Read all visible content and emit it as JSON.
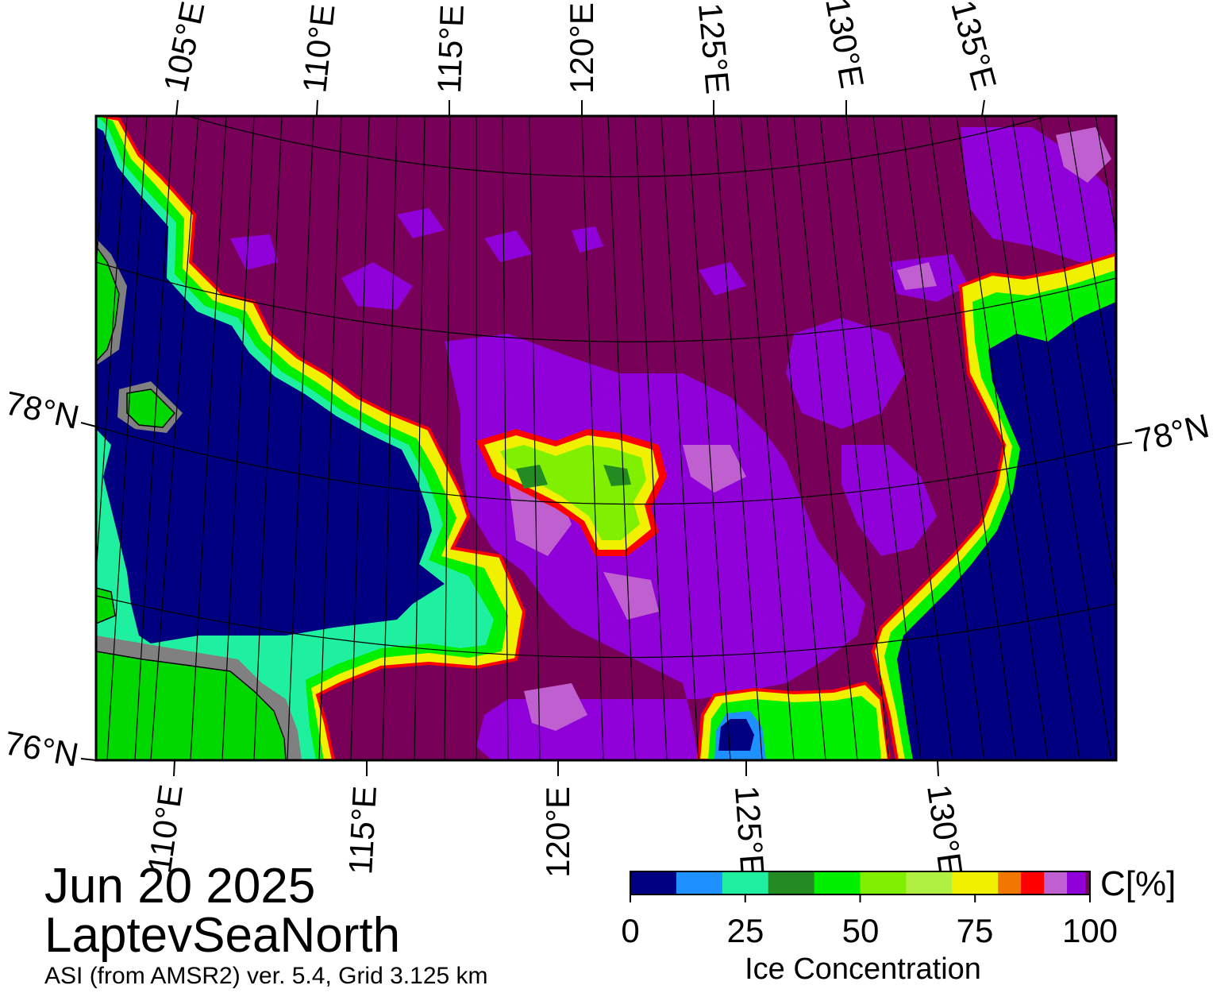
{
  "title": {
    "date": "Jun 20 2025",
    "region": "LaptevSeaNorth",
    "product": "ASI (from AMSR2) ver. 5.4,  Grid 3.125 km"
  },
  "map": {
    "top_lon_labels": [
      "105°E",
      "110°E",
      "115°E",
      "120°E",
      "125°E",
      "130°E",
      "135°E"
    ],
    "bottom_lon_labels": [
      "110°E",
      "115°E",
      "120°E",
      "125°E",
      "130°E"
    ],
    "left_lat_labels": [
      "78°N",
      "76°N"
    ],
    "right_lat_labels": [
      "78°N"
    ],
    "colors": {
      "land": "#00d800",
      "land_mask": "#808080",
      "open_water": "#000080",
      "high_concentration": "#780058",
      "frame": "#000000"
    }
  },
  "colorbar": {
    "title": "Ice Concentration",
    "unit": "C[%]",
    "ticks": [
      "0",
      "25",
      "50",
      "75",
      "100"
    ],
    "range": [
      0,
      100
    ],
    "bins": [
      {
        "from": 0,
        "to": 10,
        "color": "#000080"
      },
      {
        "from": 10,
        "to": 20,
        "color": "#1e90ff"
      },
      {
        "from": 20,
        "to": 30,
        "color": "#1ef0a0"
      },
      {
        "from": 30,
        "to": 40,
        "color": "#228b22"
      },
      {
        "from": 40,
        "to": 50,
        "color": "#00f000"
      },
      {
        "from": 50,
        "to": 60,
        "color": "#80f000"
      },
      {
        "from": 60,
        "to": 70,
        "color": "#b0f040"
      },
      {
        "from": 70,
        "to": 80,
        "color": "#f0f000"
      },
      {
        "from": 80,
        "to": 85,
        "color": "#f07800"
      },
      {
        "from": 85,
        "to": 90,
        "color": "#ff0000"
      },
      {
        "from": 90,
        "to": 95,
        "color": "#c060d0"
      },
      {
        "from": 95,
        "to": 99,
        "color": "#9000d8"
      },
      {
        "from": 99,
        "to": 100,
        "color": "#780058"
      }
    ]
  }
}
